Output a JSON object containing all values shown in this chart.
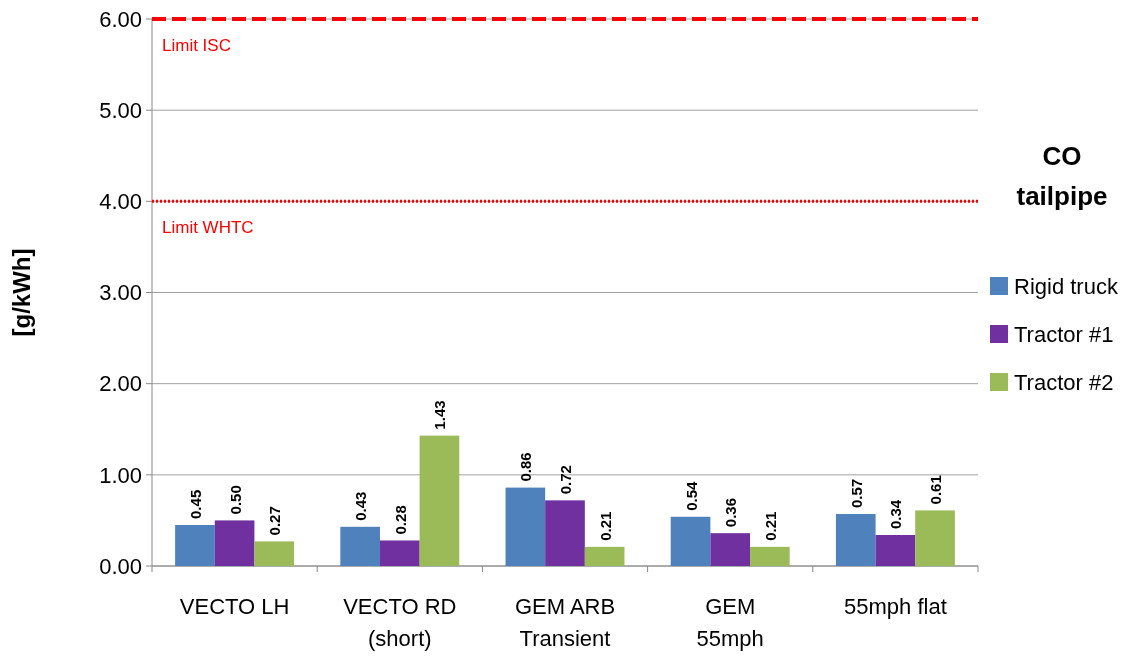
{
  "chart_data": {
    "type": "bar",
    "title": "CO\ntailpipe",
    "ylabel": "[g/kWh]",
    "categories": [
      "VECTO LH",
      "VECTO RD\n(short)",
      "GEM ARB\nTransient",
      "GEM\n55mph",
      "55mph flat"
    ],
    "series": [
      {
        "name": "Rigid truck",
        "color": "#4f81bd",
        "values": [
          0.45,
          0.43,
          0.86,
          0.54,
          0.57
        ],
        "value_labels": [
          "0.45",
          "0.43",
          "0.86",
          "0.54",
          "0.57"
        ]
      },
      {
        "name": "Tractor #1",
        "color": "#7030a0",
        "values": [
          0.5,
          0.28,
          0.72,
          0.36,
          0.34
        ],
        "value_labels": [
          "0.50",
          "0.28",
          "0.72",
          "0.36",
          "0.34"
        ]
      },
      {
        "name": "Tractor #2",
        "color": "#9bbb59",
        "values": [
          0.27,
          1.43,
          0.21,
          0.21,
          0.61
        ],
        "value_labels": [
          "0.27",
          "1.43",
          "0.21",
          "0.21",
          "0.61"
        ]
      }
    ],
    "ylim": [
      0,
      6
    ],
    "yticks": [
      {
        "value": 0,
        "label": "0.00"
      },
      {
        "value": 1,
        "label": "1.00"
      },
      {
        "value": 2,
        "label": "2.00"
      },
      {
        "value": 3,
        "label": "3.00"
      },
      {
        "value": 4,
        "label": "4.00"
      },
      {
        "value": 5,
        "label": "5.00"
      },
      {
        "value": 6,
        "label": "6.00"
      }
    ],
    "ref_lines": [
      {
        "axis": "y",
        "value": 6,
        "label": "Limit ISC",
        "color": "#ff0000",
        "line_style": "dashed"
      },
      {
        "axis": "y",
        "value": 4,
        "label": "Limit WHTC",
        "color": "#ff0000",
        "line_style": "dotted"
      }
    ],
    "grid": "y",
    "legend": "right"
  }
}
